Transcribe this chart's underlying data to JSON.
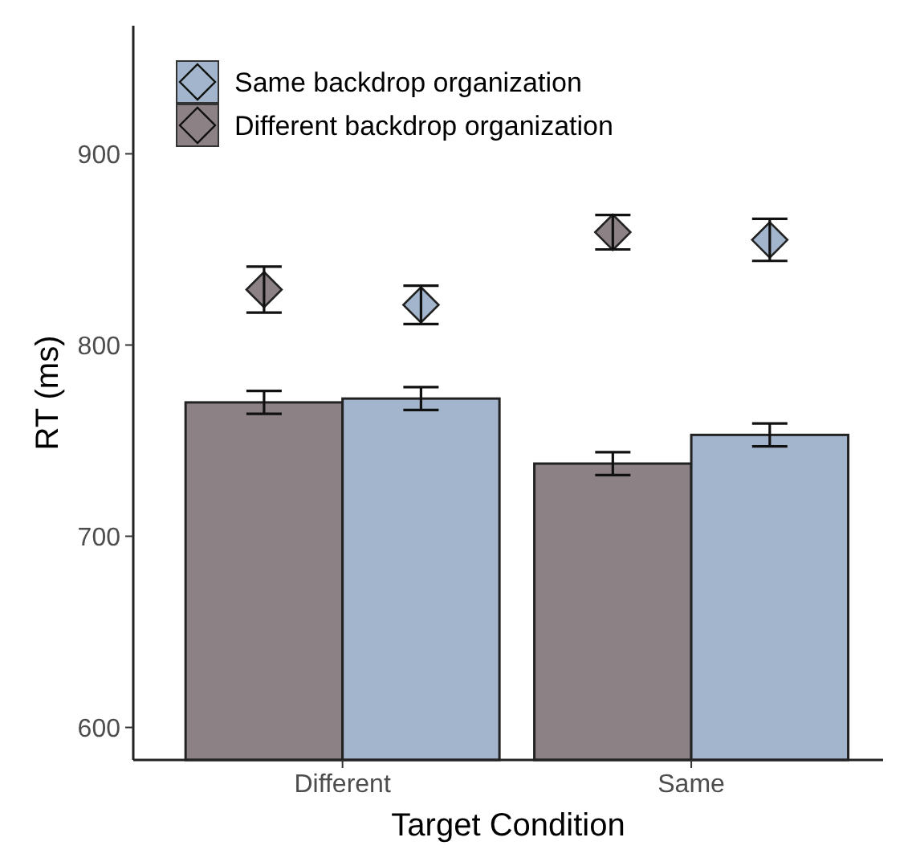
{
  "chart_data": {
    "type": "bar",
    "xlabel": "Target Condition",
    "ylabel": "RT (ms)",
    "categories": [
      "Different",
      "Same"
    ],
    "ylim": [
      583,
      967
    ],
    "yticks": [
      600,
      700,
      800,
      900
    ],
    "grid": false,
    "legend": "top left",
    "marker": "diamond",
    "series": [
      {
        "name": "Different backdrop organization",
        "color": "#8c8285",
        "values": [
          770,
          738
        ],
        "errors": [
          6,
          6
        ]
      },
      {
        "name": "Same backdrop organization",
        "color": "#a2b5cd",
        "values": [
          772,
          753
        ],
        "errors": [
          6,
          6
        ]
      },
      {
        "type": "scatter",
        "color": "#8c8285",
        "x": [
          "Different",
          "Same"
        ],
        "values": [
          829,
          859
        ],
        "errors": [
          12,
          9
        ]
      },
      {
        "type": "scatter",
        "color": "#a2b5cd",
        "x": [
          "Different",
          "Same"
        ],
        "values": [
          821,
          855
        ],
        "errors": [
          10,
          11
        ]
      }
    ]
  }
}
